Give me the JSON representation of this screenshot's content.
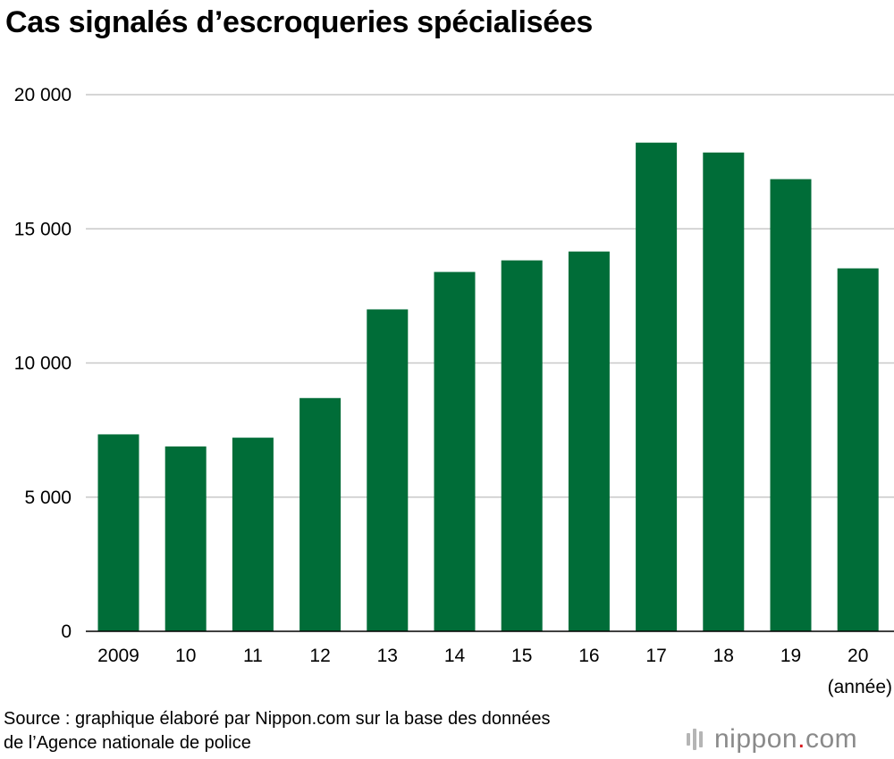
{
  "chart_data": {
    "type": "bar",
    "title": "Cas signalés d’escroqueries spécialisées",
    "categories": [
      "2009",
      "10",
      "11",
      "12",
      "13",
      "14",
      "15",
      "16",
      "17",
      "18",
      "19",
      "20"
    ],
    "values": [
      7340,
      6888,
      7216,
      8693,
      11998,
      13392,
      13824,
      14154,
      18212,
      17844,
      16851,
      13526
    ],
    "x_unit_label": "(année)",
    "ylim": [
      0,
      20000
    ],
    "yticks": [
      0,
      5000,
      10000,
      15000,
      20000
    ],
    "ytick_labels": [
      "0",
      "5 000",
      "10 000",
      "15 000",
      "20 000"
    ],
    "grid": true,
    "bar_color": "#006d38",
    "grid_color": "#c8c8c8"
  },
  "source": {
    "line1": "Source : graphique élaboré par Nippon.com sur la base des données",
    "line2": "de l’Agence nationale de police"
  },
  "logo": {
    "name": "nippon",
    "dot": ".",
    "tld": "com",
    "icon": "nippon-bars-icon",
    "text_color": "#8a8a8a",
    "dot_color": "#d7191e"
  }
}
